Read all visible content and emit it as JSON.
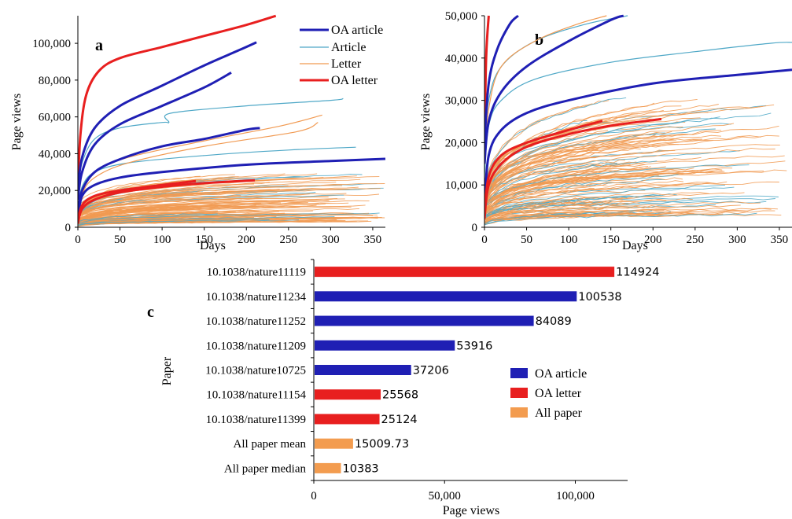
{
  "colors": {
    "oa_article": "#1f1fb4",
    "article": "#4fa8c7",
    "letter": "#f19a52",
    "oa_letter": "#e81f1f",
    "all_paper": "#f39c4f"
  },
  "chart_data": [
    {
      "type": "line",
      "panel_label": "a",
      "xlabel": "Days",
      "ylabel": "Page views",
      "xlim": [
        0,
        365
      ],
      "ylim": [
        0,
        115000
      ],
      "x_ticks": [
        "0",
        "50",
        "100",
        "150",
        "200",
        "250",
        "300",
        "350"
      ],
      "y_ticks": [
        "0",
        "20,000",
        "40,000",
        "60,000",
        "80,000",
        "100,000"
      ],
      "legend": {
        "position": "top-right",
        "entries": [
          {
            "label": "OA article",
            "color": "#1f1fb4"
          },
          {
            "label": "Article",
            "color": "#4fa8c7"
          },
          {
            "label": "Letter",
            "color": "#f19a52"
          },
          {
            "label": "OA letter",
            "color": "#e81f1f"
          }
        ]
      },
      "series": [
        {
          "group": "OA letter",
          "x": [
            0,
            3,
            10,
            25,
            50,
            100,
            150,
            200,
            235
          ],
          "y": [
            20000,
            50000,
            72000,
            85000,
            92000,
            98000,
            104000,
            110000,
            114924
          ]
        },
        {
          "group": "OA article",
          "x": [
            0,
            5,
            20,
            50,
            100,
            150,
            190,
            212
          ],
          "y": [
            20000,
            38000,
            54000,
            66000,
            77000,
            88000,
            96000,
            100538
          ]
        },
        {
          "group": "OA article",
          "x": [
            0,
            5,
            20,
            50,
            100,
            150,
            182
          ],
          "y": [
            15000,
            30000,
            45000,
            56000,
            66000,
            76000,
            84089
          ]
        },
        {
          "group": "OA article",
          "x": [
            0,
            5,
            20,
            50,
            100,
            150,
            200,
            216
          ],
          "y": [
            8000,
            20000,
            30000,
            37000,
            44000,
            48000,
            53000,
            53916
          ]
        },
        {
          "group": "OA article",
          "x": [
            0,
            5,
            20,
            50,
            100,
            200,
            300,
            365
          ],
          "y": [
            5000,
            17000,
            23000,
            27000,
            30000,
            34000,
            36000,
            37206
          ]
        },
        {
          "group": "OA letter",
          "x": [
            0,
            5,
            20,
            50,
            100,
            140
          ],
          "y": [
            3000,
            12000,
            17000,
            20000,
            23000,
            25124
          ]
        },
        {
          "group": "OA letter",
          "x": [
            0,
            5,
            20,
            50,
            100,
            150,
            210
          ],
          "y": [
            2000,
            10000,
            15000,
            19000,
            22000,
            24000,
            25568
          ]
        },
        {
          "group": "Article",
          "x": [
            0,
            5,
            20,
            50,
            100,
            108,
            110,
            200,
            300,
            315
          ],
          "y": [
            20000,
            35000,
            48000,
            54000,
            57000,
            57000,
            62000,
            66000,
            69000,
            70000
          ]
        },
        {
          "group": "Article",
          "x": [
            0,
            5,
            20,
            60,
            150,
            250,
            330
          ],
          "y": [
            10000,
            22000,
            30000,
            35000,
            39000,
            42000,
            43500
          ]
        },
        {
          "group": "Letter",
          "x": [
            0,
            5,
            20,
            60,
            150,
            240,
            290
          ],
          "y": [
            8000,
            20000,
            30000,
            38000,
            47000,
            55000,
            61000
          ]
        },
        {
          "group": "Letter",
          "x": [
            0,
            5,
            20,
            60,
            150,
            260,
            285
          ],
          "y": [
            6000,
            18000,
            27000,
            35000,
            44000,
            52000,
            57000
          ]
        }
      ]
    },
    {
      "type": "line",
      "panel_label": "b",
      "xlabel": "Days",
      "ylabel": "Page views",
      "xlim": [
        0,
        365
      ],
      "ylim": [
        0,
        50000
      ],
      "x_ticks": [
        "0",
        "50",
        "100",
        "150",
        "200",
        "250",
        "300",
        "350"
      ],
      "y_ticks": [
        "0",
        "10,000",
        "20,000",
        "30,000",
        "40,000",
        "50,000"
      ],
      "series": [
        {
          "group": "OA letter",
          "x": [
            0,
            2,
            5
          ],
          "y": [
            20000,
            40000,
            50000
          ]
        },
        {
          "group": "OA article",
          "x": [
            0,
            5,
            15,
            30,
            40
          ],
          "y": [
            20000,
            34000,
            42000,
            48000,
            50000
          ]
        },
        {
          "group": "OA article",
          "x": [
            0,
            5,
            20,
            50,
            100,
            150,
            165
          ],
          "y": [
            15000,
            25000,
            32000,
            38000,
            44000,
            49000,
            50000
          ]
        },
        {
          "group": "OA article",
          "x": [
            0,
            5,
            20,
            50,
            100,
            200,
            300,
            365
          ],
          "y": [
            5000,
            17000,
            23000,
            27000,
            30000,
            34000,
            36000,
            37206
          ]
        },
        {
          "group": "OA letter",
          "x": [
            0,
            5,
            20,
            50,
            100,
            140
          ],
          "y": [
            3000,
            12000,
            17000,
            20000,
            23000,
            25124
          ]
        },
        {
          "group": "OA letter",
          "x": [
            0,
            5,
            20,
            50,
            100,
            150,
            210
          ],
          "y": [
            2000,
            10000,
            15000,
            19000,
            22000,
            24000,
            25568
          ]
        },
        {
          "group": "Article",
          "x": [
            0,
            5,
            20,
            60,
            120,
            170
          ],
          "y": [
            18000,
            30000,
            38000,
            44000,
            48000,
            50000
          ]
        },
        {
          "group": "Article",
          "x": [
            0,
            5,
            20,
            60,
            150,
            250,
            340,
            365
          ],
          "y": [
            12000,
            24000,
            30000,
            35000,
            39000,
            41500,
            43500,
            43700
          ]
        },
        {
          "group": "Letter",
          "x": [
            0,
            5,
            20,
            60,
            110,
            145
          ],
          "y": [
            15000,
            28000,
            38000,
            44000,
            48000,
            50000
          ]
        }
      ]
    },
    {
      "type": "bar",
      "orientation": "horizontal",
      "panel_label": "c",
      "xlabel": "Page views",
      "ylabel": "Paper",
      "xlim": [
        0,
        120000
      ],
      "x_ticks": [
        "0",
        "50,000",
        "100,000"
      ],
      "categories": [
        "10.1038/nature11119",
        "10.1038/nature11234",
        "10.1038/nature11252",
        "10.1038/nature11209",
        "10.1038/nature10725",
        "10.1038/nature11154",
        "10.1038/nature11399",
        "All paper mean",
        "All paper median"
      ],
      "values": [
        114924,
        100538,
        84089,
        53916,
        37206,
        25568,
        25124,
        15009.73,
        10383
      ],
      "value_labels": [
        "114924",
        "100538",
        "84089",
        "53916",
        "37206",
        "25568",
        "25124",
        "15009.73",
        "10383"
      ],
      "groups": [
        "OA letter",
        "OA article",
        "OA article",
        "OA article",
        "OA article",
        "OA letter",
        "OA letter",
        "All paper",
        "All paper"
      ],
      "legend": {
        "position": "center-right",
        "entries": [
          {
            "label": "OA article",
            "color": "#1f1fb4"
          },
          {
            "label": "OA letter",
            "color": "#e81f1f"
          },
          {
            "label": "All paper",
            "color": "#f39c4f"
          }
        ]
      }
    }
  ]
}
